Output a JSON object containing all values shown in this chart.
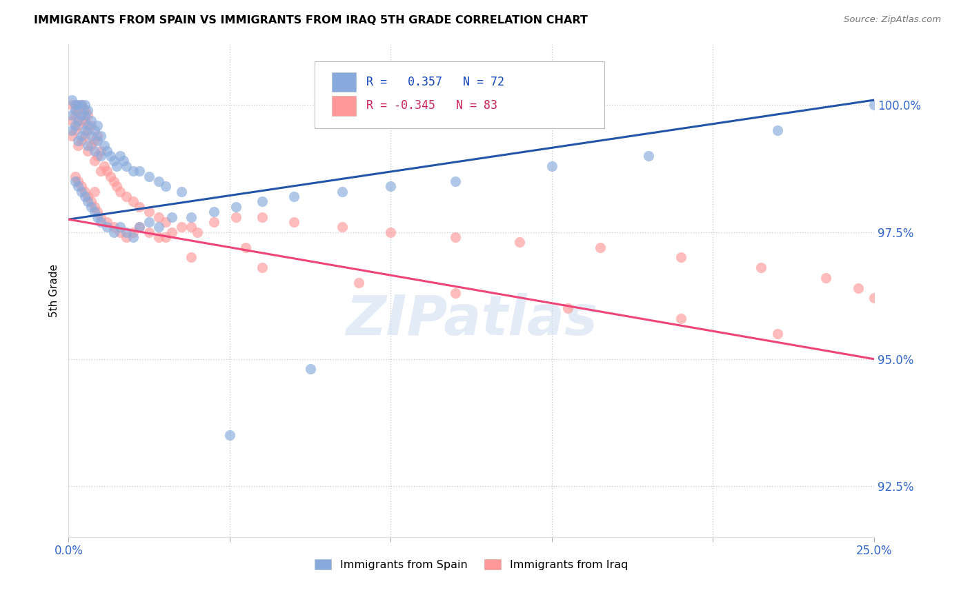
{
  "title": "IMMIGRANTS FROM SPAIN VS IMMIGRANTS FROM IRAQ 5TH GRADE CORRELATION CHART",
  "source": "Source: ZipAtlas.com",
  "ylabel": "5th Grade",
  "yticks": [
    92.5,
    95.0,
    97.5,
    100.0
  ],
  "ytick_labels": [
    "92.5%",
    "95.0%",
    "97.5%",
    "100.0%"
  ],
  "xlim": [
    0.0,
    0.25
  ],
  "ylim": [
    91.5,
    101.2
  ],
  "R_spain": 0.357,
  "N_spain": 72,
  "R_iraq": -0.345,
  "N_iraq": 83,
  "color_spain": "#88AADD",
  "color_iraq": "#FF9999",
  "trendline_spain_color": "#2255AA",
  "trendline_iraq_color": "#EE4477",
  "legend_label_spain": "Immigrants from Spain",
  "legend_label_iraq": "Immigrants from Iraq",
  "watermark": "ZIPatlas",
  "spain_trendline_x0": 0.0,
  "spain_trendline_y0": 97.75,
  "spain_trendline_x1": 0.25,
  "spain_trendline_y1": 100.1,
  "iraq_trendline_x0": 0.0,
  "iraq_trendline_y0": 97.75,
  "iraq_trendline_x1": 0.25,
  "iraq_trendline_y1": 95.0,
  "spain_x": [
    0.001,
    0.001,
    0.001,
    0.002,
    0.002,
    0.002,
    0.003,
    0.003,
    0.003,
    0.004,
    0.004,
    0.004,
    0.005,
    0.005,
    0.005,
    0.006,
    0.006,
    0.006,
    0.007,
    0.007,
    0.008,
    0.008,
    0.009,
    0.009,
    0.01,
    0.01,
    0.011,
    0.012,
    0.013,
    0.014,
    0.015,
    0.016,
    0.017,
    0.018,
    0.02,
    0.022,
    0.025,
    0.028,
    0.03,
    0.035,
    0.002,
    0.003,
    0.004,
    0.005,
    0.006,
    0.007,
    0.008,
    0.009,
    0.01,
    0.012,
    0.014,
    0.016,
    0.018,
    0.02,
    0.022,
    0.025,
    0.028,
    0.032,
    0.038,
    0.045,
    0.052,
    0.06,
    0.07,
    0.085,
    0.1,
    0.12,
    0.15,
    0.18,
    0.22,
    0.25,
    0.05,
    0.075
  ],
  "spain_y": [
    99.5,
    99.8,
    100.1,
    99.6,
    99.9,
    100.0,
    99.3,
    99.7,
    100.0,
    99.4,
    99.8,
    100.0,
    99.5,
    99.8,
    100.0,
    99.2,
    99.6,
    99.9,
    99.4,
    99.7,
    99.1,
    99.5,
    99.3,
    99.6,
    99.0,
    99.4,
    99.2,
    99.1,
    99.0,
    98.9,
    98.8,
    99.0,
    98.9,
    98.8,
    98.7,
    98.7,
    98.6,
    98.5,
    98.4,
    98.3,
    98.5,
    98.4,
    98.3,
    98.2,
    98.1,
    98.0,
    97.9,
    97.8,
    97.7,
    97.6,
    97.5,
    97.6,
    97.5,
    97.4,
    97.6,
    97.7,
    97.6,
    97.8,
    97.8,
    97.9,
    98.0,
    98.1,
    98.2,
    98.3,
    98.4,
    98.5,
    98.8,
    99.0,
    99.5,
    100.0,
    93.5,
    94.8
  ],
  "iraq_x": [
    0.001,
    0.001,
    0.001,
    0.002,
    0.002,
    0.002,
    0.003,
    0.003,
    0.003,
    0.004,
    0.004,
    0.004,
    0.005,
    0.005,
    0.005,
    0.006,
    0.006,
    0.006,
    0.007,
    0.007,
    0.008,
    0.008,
    0.009,
    0.009,
    0.01,
    0.01,
    0.011,
    0.012,
    0.013,
    0.014,
    0.015,
    0.016,
    0.018,
    0.02,
    0.022,
    0.025,
    0.028,
    0.03,
    0.035,
    0.04,
    0.002,
    0.003,
    0.004,
    0.005,
    0.006,
    0.007,
    0.008,
    0.009,
    0.01,
    0.012,
    0.014,
    0.016,
    0.018,
    0.02,
    0.022,
    0.025,
    0.028,
    0.032,
    0.038,
    0.045,
    0.052,
    0.06,
    0.07,
    0.085,
    0.1,
    0.12,
    0.14,
    0.165,
    0.19,
    0.215,
    0.235,
    0.245,
    0.25,
    0.038,
    0.06,
    0.09,
    0.12,
    0.155,
    0.19,
    0.22,
    0.008,
    0.03,
    0.055
  ],
  "iraq_y": [
    99.4,
    99.7,
    100.0,
    99.5,
    99.8,
    100.0,
    99.2,
    99.6,
    99.9,
    99.3,
    99.7,
    100.0,
    99.4,
    99.7,
    99.9,
    99.1,
    99.5,
    99.8,
    99.2,
    99.6,
    98.9,
    99.3,
    99.0,
    99.4,
    98.7,
    99.1,
    98.8,
    98.7,
    98.6,
    98.5,
    98.4,
    98.3,
    98.2,
    98.1,
    98.0,
    97.9,
    97.8,
    97.7,
    97.6,
    97.5,
    98.6,
    98.5,
    98.4,
    98.3,
    98.2,
    98.1,
    98.0,
    97.9,
    97.8,
    97.7,
    97.6,
    97.5,
    97.4,
    97.5,
    97.6,
    97.5,
    97.4,
    97.5,
    97.6,
    97.7,
    97.8,
    97.8,
    97.7,
    97.6,
    97.5,
    97.4,
    97.3,
    97.2,
    97.0,
    96.8,
    96.6,
    96.4,
    96.2,
    97.0,
    96.8,
    96.5,
    96.3,
    96.0,
    95.8,
    95.5,
    98.3,
    97.4,
    97.2
  ]
}
